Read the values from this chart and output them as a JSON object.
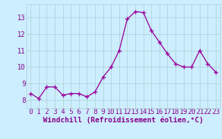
{
  "x": [
    0,
    1,
    2,
    3,
    4,
    5,
    6,
    7,
    8,
    9,
    10,
    11,
    12,
    13,
    14,
    15,
    16,
    17,
    18,
    19,
    20,
    21,
    22,
    23
  ],
  "y": [
    8.4,
    8.1,
    8.8,
    8.8,
    8.3,
    8.4,
    8.4,
    8.2,
    8.5,
    9.4,
    10.0,
    11.0,
    12.9,
    13.35,
    13.3,
    12.2,
    11.5,
    10.8,
    10.2,
    10.0,
    10.0,
    11.0,
    10.2,
    9.7
  ],
  "line_color": "#990099",
  "marker": "+",
  "marker_color": "#990099",
  "bg_color": "#cceeff",
  "grid_color": "#aacccc",
  "xlabel": "Windchill (Refroidissement éolien,°C)",
  "xlabel_color": "#880088",
  "tick_color": "#880088",
  "ylim": [
    7.5,
    13.8
  ],
  "xlim": [
    -0.5,
    23.5
  ],
  "yticks": [
    8,
    9,
    10,
    11,
    12,
    13
  ],
  "xticks": [
    0,
    1,
    2,
    3,
    4,
    5,
    6,
    7,
    8,
    9,
    10,
    11,
    12,
    13,
    14,
    15,
    16,
    17,
    18,
    19,
    20,
    21,
    22,
    23
  ],
  "linewidth": 1.0,
  "markersize": 4,
  "tick_fontsize": 7,
  "xlabel_fontsize": 7.5
}
